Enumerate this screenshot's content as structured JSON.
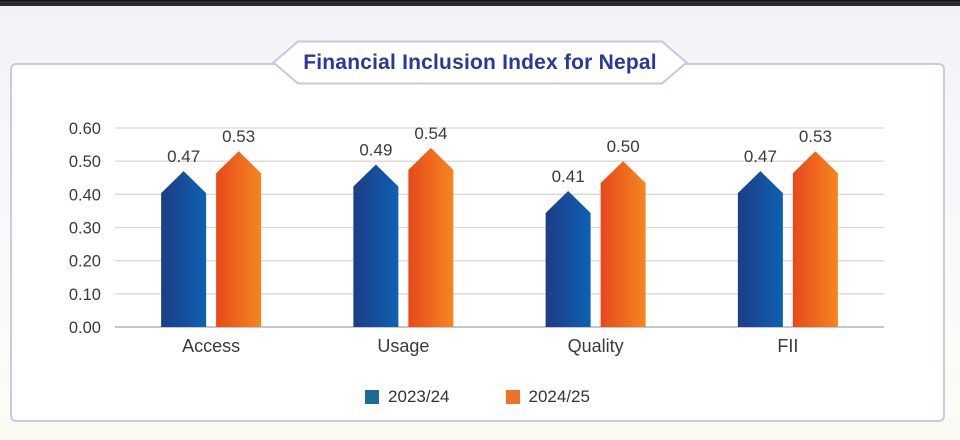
{
  "page": {
    "top_strip_color": "#2c2c2c",
    "panel_border_color": "#c9cbdf"
  },
  "title": {
    "text": "Financial Inclusion Index for Nepal",
    "color": "#2b3996",
    "banner_border_color": "#c6c9dd",
    "banner_fill": "#ffffff"
  },
  "chart_data": {
    "type": "bar",
    "title": "Financial Inclusion Index for Nepal",
    "categories": [
      "Access",
      "Usage",
      "Quality",
      "FII"
    ],
    "series": [
      {
        "name": "2023/24",
        "values": [
          0.47,
          0.49,
          0.41,
          0.47
        ],
        "bar_gradient_start": "#1e3c85",
        "bar_gradient_end": "#0d61b3",
        "legend_color": "#1d6b93"
      },
      {
        "name": "2024/25",
        "values": [
          0.53,
          0.54,
          0.5,
          0.53
        ],
        "bar_gradient_start": "#e8481c",
        "bar_gradient_end": "#f4871e",
        "legend_color": "#ef7125"
      }
    ],
    "xlabel": "",
    "ylabel": "",
    "ylim": [
      0,
      0.6
    ],
    "ytick_labels": [
      "0.00",
      "0.10",
      "0.20",
      "0.30",
      "0.40",
      "0.50",
      "0.60"
    ],
    "grid": true,
    "gridline_color": "#d9d9d9",
    "baseline_color": "#c6c6c6",
    "value_label_decimals": 2,
    "text_color": "#3a3a3a",
    "legend_position": "bottom"
  }
}
